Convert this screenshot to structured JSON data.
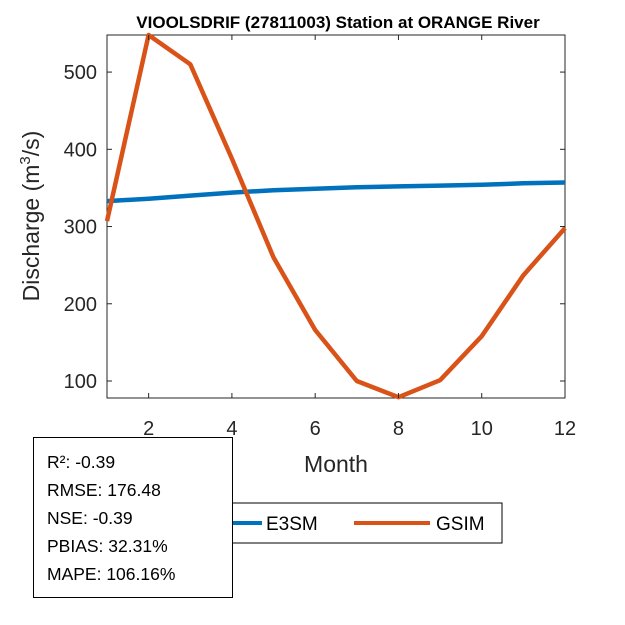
{
  "chart_data": {
    "type": "line",
    "title": "VIOOLSDRIF (27811003)  Station at  ORANGE  River",
    "xlabel": "Month",
    "ylabel_main": "Discharge (m",
    "ylabel_sup": "3",
    "ylabel_tail": "/s)",
    "xlim": [
      1,
      12
    ],
    "ylim": [
      78,
      548
    ],
    "xticks": [
      2,
      4,
      6,
      8,
      10,
      12
    ],
    "yticks": [
      100,
      200,
      300,
      400,
      500
    ],
    "grid": false,
    "legend_placement": "bottom-center",
    "x": [
      1,
      2,
      3,
      4,
      5,
      6,
      7,
      8,
      9,
      10,
      11,
      12
    ],
    "series": [
      {
        "name": "E3SM",
        "color": "#0072BD",
        "values": [
          333,
          336,
          340,
          344,
          347,
          349,
          351,
          352,
          353,
          354,
          356,
          357
        ]
      },
      {
        "name": "GSIM",
        "color": "#D95319",
        "values": [
          307,
          548,
          510,
          388,
          260,
          166,
          100,
          79,
          101,
          158,
          237,
          298
        ]
      }
    ]
  },
  "stats": [
    "R²: -0.39",
    "RMSE: 176.48",
    "NSE: -0.39",
    "PBIAS: 32.31%",
    "MAPE: 106.16%"
  ]
}
